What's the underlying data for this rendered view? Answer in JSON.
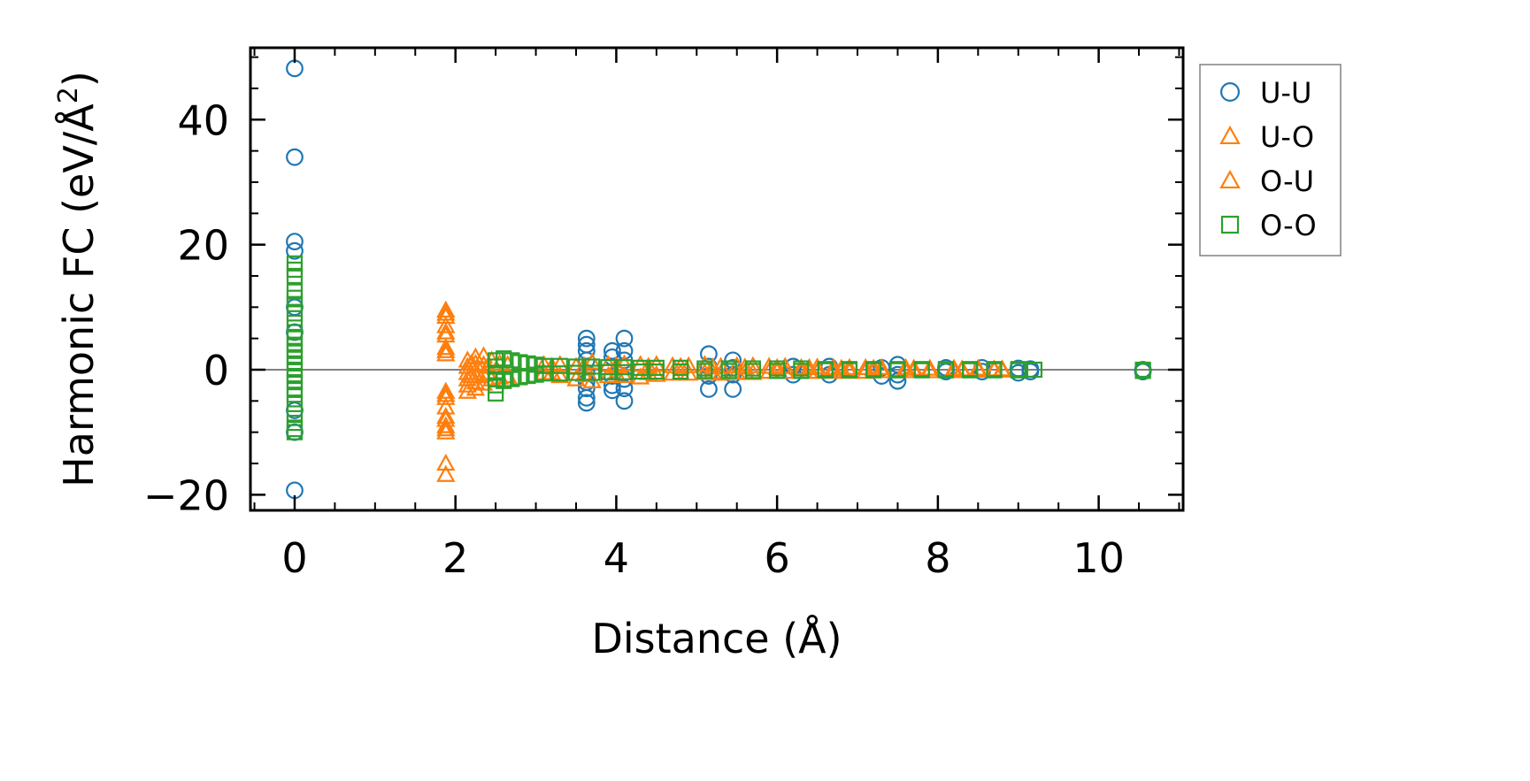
{
  "chart_data": {
    "type": "scatter",
    "xlabel": "Distance (Å)",
    "ylabel_main": "Harmonic FC (eV/Å",
    "ylabel_sup": "2",
    "ylabel_close": ")",
    "xlim": [
      -0.55,
      11.05
    ],
    "ylim": [
      -22.5,
      51.5
    ],
    "xticks": [
      0,
      2,
      4,
      6,
      8,
      10
    ],
    "xtick_labels": [
      "0",
      "2",
      "4",
      "6",
      "8",
      "10"
    ],
    "yticks": [
      -20,
      0,
      20,
      40
    ],
    "ytick_labels": [
      "−20",
      "0",
      "20",
      "40"
    ],
    "grid": false,
    "legend_position": "outside-right-top",
    "zero_line": true,
    "series": [
      {
        "name": "U-U",
        "marker": "circle",
        "color": "#1f77b4",
        "points": [
          [
            0.0,
            48.2
          ],
          [
            0.0,
            34.0
          ],
          [
            0.0,
            20.5
          ],
          [
            0.0,
            19.0
          ],
          [
            0.0,
            10.0
          ],
          [
            0.0,
            6.0
          ],
          [
            0.0,
            -6.5
          ],
          [
            0.0,
            -10.0
          ],
          [
            0.0,
            -19.3
          ],
          [
            3.63,
            5.0
          ],
          [
            3.63,
            4.0
          ],
          [
            3.63,
            3.0
          ],
          [
            3.63,
            1.5
          ],
          [
            3.63,
            -0.5
          ],
          [
            3.63,
            -2.0
          ],
          [
            3.63,
            -3.0
          ],
          [
            3.63,
            -4.5
          ],
          [
            3.63,
            -5.3
          ],
          [
            3.95,
            3.0
          ],
          [
            3.95,
            2.0
          ],
          [
            3.95,
            -1.0
          ],
          [
            3.95,
            -2.5
          ],
          [
            3.95,
            -3.3
          ],
          [
            4.1,
            5.0
          ],
          [
            4.1,
            3.0
          ],
          [
            4.1,
            1.5
          ],
          [
            4.1,
            -1.5
          ],
          [
            4.1,
            -3.0
          ],
          [
            4.1,
            -5.0
          ],
          [
            5.15,
            2.5
          ],
          [
            5.15,
            0.5
          ],
          [
            5.15,
            -1.0
          ],
          [
            5.15,
            -3.1
          ],
          [
            5.45,
            1.5
          ],
          [
            5.45,
            0.3
          ],
          [
            5.45,
            -0.8
          ],
          [
            5.45,
            -3.1
          ],
          [
            6.2,
            0.5
          ],
          [
            6.2,
            -0.8
          ],
          [
            6.65,
            0.5
          ],
          [
            6.65,
            -0.8
          ],
          [
            7.3,
            0.3
          ],
          [
            7.3,
            -1.0
          ],
          [
            7.5,
            0.8
          ],
          [
            7.5,
            -0.8
          ],
          [
            7.5,
            -1.8
          ],
          [
            8.1,
            0.3
          ],
          [
            8.1,
            -0.3
          ],
          [
            8.55,
            0.3
          ],
          [
            8.55,
            -0.3
          ],
          [
            9.0,
            0.2
          ],
          [
            9.0,
            -0.5
          ],
          [
            9.15,
            0.1
          ],
          [
            9.15,
            -0.3
          ],
          [
            10.55,
            0.0
          ],
          [
            10.55,
            -0.3
          ]
        ]
      },
      {
        "name": "U-O",
        "marker": "triangle",
        "color": "#ff7f0e",
        "points": [
          [
            1.88,
            9.5
          ],
          [
            1.88,
            8.5
          ],
          [
            1.88,
            7.0
          ],
          [
            1.88,
            5.5
          ],
          [
            1.88,
            3.5
          ],
          [
            1.88,
            2.5
          ],
          [
            1.88,
            -3.5
          ],
          [
            1.88,
            -4.5
          ],
          [
            1.88,
            -6.0
          ],
          [
            1.88,
            -7.5
          ],
          [
            1.88,
            -9.0
          ],
          [
            1.88,
            -10.0
          ],
          [
            1.88,
            -15.0
          ],
          [
            1.88,
            -16.8
          ],
          [
            2.15,
            1.5
          ],
          [
            2.15,
            0.5
          ],
          [
            2.15,
            -0.5
          ],
          [
            2.15,
            -1.5
          ],
          [
            2.15,
            -2.5
          ],
          [
            2.15,
            -3.5
          ],
          [
            2.25,
            2.0
          ],
          [
            2.25,
            1.0
          ],
          [
            2.25,
            -1.0
          ],
          [
            2.25,
            -2.0
          ],
          [
            2.25,
            -3.0
          ],
          [
            2.35,
            2.2
          ],
          [
            2.35,
            0.8
          ],
          [
            2.35,
            -0.8
          ],
          [
            2.35,
            -2.2
          ],
          [
            2.45,
            1.5
          ],
          [
            2.45,
            -1.5
          ],
          [
            2.55,
            1.0
          ],
          [
            2.55,
            -1.2
          ],
          [
            2.65,
            0.8
          ],
          [
            2.65,
            -1.0
          ],
          [
            3.1,
            0.8
          ],
          [
            3.1,
            -0.5
          ],
          [
            3.3,
            0.8
          ],
          [
            3.3,
            -1.0
          ],
          [
            3.5,
            0.5
          ],
          [
            3.5,
            -1.5
          ],
          [
            3.7,
            1.2
          ],
          [
            3.7,
            -1.8
          ],
          [
            3.9,
            0.8
          ],
          [
            3.9,
            -1.0
          ],
          [
            4.1,
            0.9
          ],
          [
            4.1,
            -1.0
          ],
          [
            4.3,
            0.8
          ],
          [
            4.3,
            -1.2
          ],
          [
            4.5,
            0.8
          ],
          [
            4.5,
            -0.8
          ],
          [
            4.7,
            0.6
          ],
          [
            4.7,
            -0.6
          ],
          [
            4.9,
            0.6
          ],
          [
            4.9,
            -0.6
          ],
          [
            5.1,
            0.8
          ],
          [
            5.1,
            -0.5
          ],
          [
            5.3,
            0.5
          ],
          [
            5.3,
            -0.6
          ],
          [
            5.5,
            0.6
          ],
          [
            5.5,
            -0.5
          ],
          [
            5.7,
            0.6
          ],
          [
            5.7,
            -0.5
          ],
          [
            5.9,
            0.5
          ],
          [
            5.9,
            -0.3
          ],
          [
            6.1,
            0.5
          ],
          [
            6.1,
            -0.3
          ],
          [
            6.3,
            0.3
          ],
          [
            6.3,
            -0.3
          ],
          [
            6.5,
            0.4
          ],
          [
            6.5,
            -0.3
          ],
          [
            6.7,
            0.3
          ],
          [
            6.7,
            -0.3
          ],
          [
            6.9,
            0.3
          ],
          [
            6.9,
            -0.3
          ],
          [
            7.1,
            0.3
          ],
          [
            7.1,
            -0.3
          ],
          [
            7.3,
            0.3
          ],
          [
            7.3,
            -0.2
          ],
          [
            7.6,
            0.3
          ],
          [
            7.6,
            -0.2
          ],
          [
            7.9,
            0.2
          ],
          [
            7.9,
            -0.2
          ],
          [
            8.2,
            0.2
          ],
          [
            8.2,
            -0.2
          ],
          [
            8.5,
            0.2
          ],
          [
            8.5,
            -0.1
          ],
          [
            8.8,
            0.1
          ],
          [
            8.8,
            -0.1
          ]
        ]
      },
      {
        "name": "O-U",
        "marker": "triangle",
        "color": "#ff7f0e",
        "points": [
          [
            1.88,
            9.0
          ],
          [
            1.88,
            6.0
          ],
          [
            1.88,
            3.0
          ],
          [
            1.88,
            -4.0
          ],
          [
            1.88,
            -8.0
          ],
          [
            1.88,
            -9.5
          ],
          [
            2.2,
            1.0
          ],
          [
            2.2,
            -1.0
          ],
          [
            2.4,
            0.5
          ],
          [
            2.4,
            -0.5
          ],
          [
            3.2,
            0.5
          ],
          [
            3.2,
            -0.5
          ],
          [
            3.6,
            0.6
          ],
          [
            3.6,
            -0.8
          ],
          [
            4.0,
            0.6
          ],
          [
            4.0,
            -0.6
          ],
          [
            4.4,
            0.5
          ],
          [
            4.4,
            -0.5
          ],
          [
            4.8,
            0.5
          ],
          [
            4.8,
            -0.5
          ],
          [
            5.2,
            0.4
          ],
          [
            5.2,
            -0.4
          ],
          [
            5.6,
            0.4
          ],
          [
            5.6,
            -0.4
          ],
          [
            6.0,
            0.3
          ],
          [
            6.0,
            -0.3
          ],
          [
            6.4,
            0.3
          ],
          [
            6.4,
            -0.3
          ],
          [
            6.8,
            0.2
          ],
          [
            6.8,
            -0.2
          ],
          [
            7.2,
            0.2
          ],
          [
            7.2,
            -0.2
          ],
          [
            7.7,
            0.2
          ],
          [
            7.7,
            -0.2
          ],
          [
            8.3,
            0.1
          ],
          [
            8.3,
            -0.1
          ],
          [
            8.7,
            0.1
          ],
          [
            8.7,
            -0.1
          ]
        ]
      },
      {
        "name": "O-O",
        "marker": "square",
        "color": "#2ca02c",
        "points": [
          [
            0.0,
            17.0
          ],
          [
            0.0,
            16.0
          ],
          [
            0.0,
            15.0
          ],
          [
            0.0,
            12.5
          ],
          [
            0.0,
            11.5
          ],
          [
            0.0,
            10.5
          ],
          [
            0.0,
            9.0
          ],
          [
            0.0,
            7.5
          ],
          [
            0.0,
            6.0
          ],
          [
            0.0,
            5.0
          ],
          [
            0.0,
            4.0
          ],
          [
            0.0,
            3.0
          ],
          [
            0.0,
            2.0
          ],
          [
            0.0,
            1.0
          ],
          [
            0.0,
            0.0
          ],
          [
            0.0,
            -1.0
          ],
          [
            0.0,
            -2.0
          ],
          [
            0.0,
            -3.0
          ],
          [
            0.0,
            -4.0
          ],
          [
            0.0,
            -5.5
          ],
          [
            0.0,
            -7.0
          ],
          [
            0.0,
            -8.5
          ],
          [
            0.0,
            -9.5
          ],
          [
            0.0,
            -10.0
          ],
          [
            2.5,
            1.5
          ],
          [
            2.5,
            0.5
          ],
          [
            2.5,
            -0.5
          ],
          [
            2.5,
            -1.5
          ],
          [
            2.5,
            -2.5
          ],
          [
            2.5,
            -3.8
          ],
          [
            2.6,
            1.8
          ],
          [
            2.6,
            -1.8
          ],
          [
            2.7,
            1.5
          ],
          [
            2.7,
            -1.5
          ],
          [
            2.8,
            1.2
          ],
          [
            2.8,
            -1.2
          ],
          [
            2.9,
            1.0
          ],
          [
            2.9,
            -1.0
          ],
          [
            3.0,
            0.8
          ],
          [
            3.0,
            -0.8
          ],
          [
            3.1,
            0.6
          ],
          [
            3.1,
            -0.6
          ],
          [
            3.3,
            0.6
          ],
          [
            3.3,
            -0.6
          ],
          [
            3.5,
            0.5
          ],
          [
            3.5,
            -0.5
          ],
          [
            3.7,
            0.5
          ],
          [
            3.7,
            -0.5
          ],
          [
            3.9,
            0.4
          ],
          [
            3.9,
            -0.4
          ],
          [
            4.1,
            0.4
          ],
          [
            4.1,
            -0.4
          ],
          [
            4.3,
            0.3
          ],
          [
            4.3,
            -0.3
          ],
          [
            4.5,
            0.3
          ],
          [
            4.5,
            -0.3
          ],
          [
            4.8,
            0.3
          ],
          [
            4.8,
            -0.3
          ],
          [
            5.1,
            0.2
          ],
          [
            5.1,
            -0.2
          ],
          [
            5.4,
            0.2
          ],
          [
            5.4,
            -0.2
          ],
          [
            5.7,
            0.2
          ],
          [
            5.7,
            -0.2
          ],
          [
            6.0,
            0.2
          ],
          [
            6.0,
            -0.2
          ],
          [
            6.3,
            0.2
          ],
          [
            6.3,
            -0.2
          ],
          [
            6.6,
            0.1
          ],
          [
            6.6,
            -0.1
          ],
          [
            6.9,
            0.1
          ],
          [
            6.9,
            -0.1
          ],
          [
            7.2,
            0.1
          ],
          [
            7.2,
            -0.1
          ],
          [
            7.5,
            0.1
          ],
          [
            7.5,
            -0.1
          ],
          [
            7.8,
            0.1
          ],
          [
            7.8,
            -0.1
          ],
          [
            8.1,
            0.1
          ],
          [
            8.1,
            -0.1
          ],
          [
            8.4,
            0.1
          ],
          [
            8.4,
            -0.1
          ],
          [
            8.7,
            0.1
          ],
          [
            8.7,
            -0.1
          ],
          [
            9.0,
            0.1
          ],
          [
            9.0,
            -0.1
          ],
          [
            9.2,
            0.0
          ],
          [
            10.55,
            0.0
          ],
          [
            10.55,
            -0.2
          ]
        ]
      }
    ]
  }
}
